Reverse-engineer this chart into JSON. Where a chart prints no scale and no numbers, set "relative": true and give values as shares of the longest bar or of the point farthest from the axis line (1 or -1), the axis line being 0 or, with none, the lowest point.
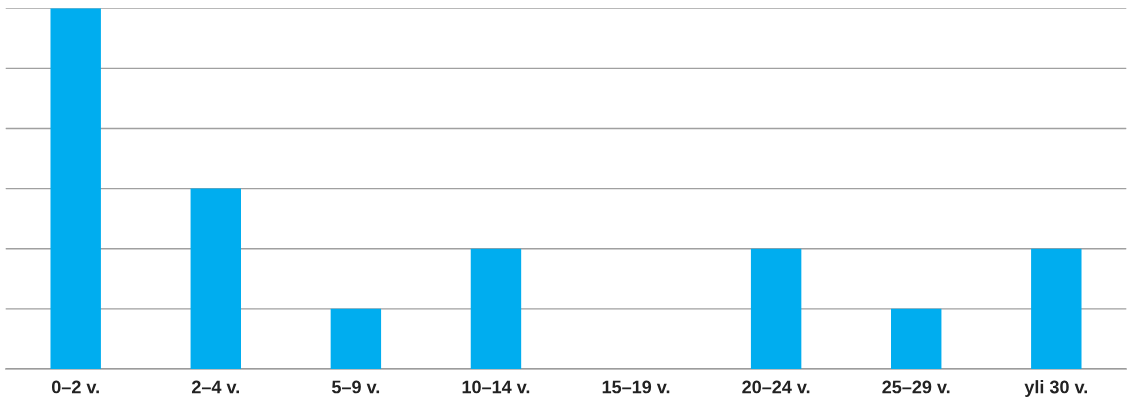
{
  "chart_data": {
    "type": "bar",
    "relative": true,
    "categories": [
      "0–2 v.",
      "2–4 v.",
      "5–9 v.",
      "10–14 v.",
      "15–19 v.",
      "20–24 v.",
      "25–29 v.",
      "yli 30 v."
    ],
    "values": [
      1,
      0.5,
      0.1667,
      0.3333,
      0,
      0.3333,
      0.1667,
      0.3333
    ],
    "color": "#00adef",
    "grid": "y",
    "legend": false
  }
}
